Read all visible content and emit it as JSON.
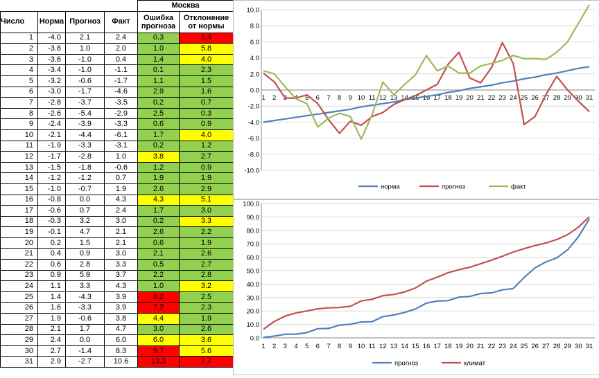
{
  "table": {
    "city": "Москва",
    "headers": {
      "day": "Число",
      "norm": "Норма",
      "forecast": "Прогноз",
      "fact": "Факт",
      "error": "Ошибка прогноза",
      "deviation": "Отклонение от нормы"
    },
    "colors": {
      "green": "#92d050",
      "yellow": "#ffff00",
      "red": "#ff0000"
    },
    "rows": [
      {
        "d": "1",
        "n": "-4.0",
        "p": "2.1",
        "f": "2.4",
        "e": "0.3",
        "ec": "green",
        "o": "6.4",
        "oc": "red"
      },
      {
        "d": "2",
        "n": "-3.8",
        "p": "1.0",
        "f": "2.0",
        "e": "1.0",
        "ec": "green",
        "o": "5.8",
        "oc": "yellow"
      },
      {
        "d": "3",
        "n": "-3.6",
        "p": "-1.0",
        "f": "0.4",
        "e": "1.4",
        "ec": "green",
        "o": "4.0",
        "oc": "yellow"
      },
      {
        "d": "4",
        "n": "-3.4",
        "p": "-1.0",
        "f": "-1.1",
        "e": "0.1",
        "ec": "green",
        "o": "2.3",
        "oc": "green"
      },
      {
        "d": "5",
        "n": "-3.2",
        "p": "-0.6",
        "f": "-1.7",
        "e": "1.1",
        "ec": "green",
        "o": "1.5",
        "oc": "green"
      },
      {
        "d": "6",
        "n": "-3.0",
        "p": "-1.7",
        "f": "-4.6",
        "e": "2.9",
        "ec": "green",
        "o": "1.6",
        "oc": "green"
      },
      {
        "d": "7",
        "n": "-2.8",
        "p": "-3.7",
        "f": "-3.5",
        "e": "0.2",
        "ec": "green",
        "o": "0.7",
        "oc": "green"
      },
      {
        "d": "8",
        "n": "-2.6",
        "p": "-5.4",
        "f": "-2.9",
        "e": "2.5",
        "ec": "green",
        "o": "0.3",
        "oc": "green"
      },
      {
        "d": "9",
        "n": "-2.4",
        "p": "-3.9",
        "f": "-3.3",
        "e": "0.6",
        "ec": "green",
        "o": "0.9",
        "oc": "green"
      },
      {
        "d": "10",
        "n": "-2.1",
        "p": "-4.4",
        "f": "-6.1",
        "e": "1.7",
        "ec": "green",
        "o": "4.0",
        "oc": "yellow"
      },
      {
        "d": "11",
        "n": "-1.9",
        "p": "-3.3",
        "f": "-3.1",
        "e": "0.2",
        "ec": "green",
        "o": "1.2",
        "oc": "green"
      },
      {
        "d": "12",
        "n": "-1.7",
        "p": "-2.8",
        "f": "1.0",
        "e": "3.8",
        "ec": "yellow",
        "o": "2.7",
        "oc": "green"
      },
      {
        "d": "13",
        "n": "-1.5",
        "p": "-1.8",
        "f": "-0.6",
        "e": "1.2",
        "ec": "green",
        "o": "0.9",
        "oc": "green"
      },
      {
        "d": "14",
        "n": "-1.2",
        "p": "-1.2",
        "f": "0.7",
        "e": "1.9",
        "ec": "green",
        "o": "1.9",
        "oc": "green"
      },
      {
        "d": "15",
        "n": "-1.0",
        "p": "-0.7",
        "f": "1.9",
        "e": "2.6",
        "ec": "green",
        "o": "2.9",
        "oc": "green"
      },
      {
        "d": "16",
        "n": "-0.8",
        "p": "0.0",
        "f": "4.3",
        "e": "4.3",
        "ec": "yellow",
        "o": "5.1",
        "oc": "yellow"
      },
      {
        "d": "17",
        "n": "-0.6",
        "p": "0.7",
        "f": "2.4",
        "e": "1.7",
        "ec": "green",
        "o": "3.0",
        "oc": "green"
      },
      {
        "d": "18",
        "n": "-0.3",
        "p": "3.2",
        "f": "3.0",
        "e": "0.2",
        "ec": "green",
        "o": "3.3",
        "oc": "yellow"
      },
      {
        "d": "19",
        "n": "-0.1",
        "p": "4.7",
        "f": "2.1",
        "e": "2.6",
        "ec": "green",
        "o": "2.2",
        "oc": "green"
      },
      {
        "d": "20",
        "n": "0.2",
        "p": "1.5",
        "f": "2.1",
        "e": "0.6",
        "ec": "green",
        "o": "1.9",
        "oc": "green"
      },
      {
        "d": "21",
        "n": "0.4",
        "p": "0.9",
        "f": "3.0",
        "e": "2.1",
        "ec": "green",
        "o": "2.6",
        "oc": "green"
      },
      {
        "d": "22",
        "n": "0.6",
        "p": "2.8",
        "f": "3.3",
        "e": "0.5",
        "ec": "green",
        "o": "2.7",
        "oc": "green"
      },
      {
        "d": "23",
        "n": "0.9",
        "p": "5.9",
        "f": "3.7",
        "e": "2.2",
        "ec": "green",
        "o": "2.8",
        "oc": "green"
      },
      {
        "d": "24",
        "n": "1.1",
        "p": "3.3",
        "f": "4.3",
        "e": "1.0",
        "ec": "green",
        "o": "3.2",
        "oc": "yellow"
      },
      {
        "d": "25",
        "n": "1.4",
        "p": "-4.3",
        "f": "3.9",
        "e": "8.2",
        "ec": "red",
        "o": "2.5",
        "oc": "green"
      },
      {
        "d": "26",
        "n": "1.6",
        "p": "-3.3",
        "f": "3.9",
        "e": "7.2",
        "ec": "red",
        "o": "2.3",
        "oc": "green"
      },
      {
        "d": "27",
        "n": "1.9",
        "p": "-0.6",
        "f": "3.8",
        "e": "4.4",
        "ec": "yellow",
        "o": "1.9",
        "oc": "green"
      },
      {
        "d": "28",
        "n": "2.1",
        "p": "1.7",
        "f": "4.7",
        "e": "3.0",
        "ec": "green",
        "o": "2.6",
        "oc": "green"
      },
      {
        "d": "29",
        "n": "2.4",
        "p": "0.0",
        "f": "6.0",
        "e": "6.0",
        "ec": "yellow",
        "o": "3.6",
        "oc": "yellow"
      },
      {
        "d": "30",
        "n": "2.7",
        "p": "-1.4",
        "f": "8.3",
        "e": "9.7",
        "ec": "red",
        "o": "5.6",
        "oc": "yellow"
      },
      {
        "d": "31",
        "n": "2.9",
        "p": "-2.7",
        "f": "10.6",
        "e": "13.3",
        "ec": "red",
        "o": "7.7",
        "oc": "red"
      }
    ]
  },
  "chart_data": [
    {
      "type": "line",
      "x": [
        1,
        2,
        3,
        4,
        5,
        6,
        7,
        8,
        9,
        10,
        11,
        12,
        13,
        14,
        15,
        16,
        17,
        18,
        19,
        20,
        21,
        22,
        23,
        24,
        25,
        26,
        27,
        28,
        29,
        30,
        31
      ],
      "ylim": [
        -10,
        10
      ],
      "yticks": [
        "10.0",
        "8.0",
        "6.0",
        "4.0",
        "2.0",
        "0.0",
        "-2.0",
        "-4.0",
        "-6.0",
        "-8.0",
        "-10.0"
      ],
      "grid": true,
      "legend_position": "bottom",
      "series": [
        {
          "name": "норма",
          "color": "#4f81bd",
          "values": [
            -4.0,
            -3.8,
            -3.6,
            -3.4,
            -3.2,
            -3.0,
            -2.8,
            -2.6,
            -2.4,
            -2.1,
            -1.9,
            -1.7,
            -1.5,
            -1.2,
            -1.0,
            -0.8,
            -0.6,
            -0.3,
            -0.1,
            0.2,
            0.4,
            0.6,
            0.9,
            1.1,
            1.4,
            1.6,
            1.9,
            2.1,
            2.4,
            2.7,
            2.9
          ]
        },
        {
          "name": "прогноз",
          "color": "#c0504d",
          "values": [
            2.1,
            1.0,
            -1.0,
            -1.0,
            -0.6,
            -1.7,
            -3.7,
            -5.4,
            -3.9,
            -4.4,
            -3.3,
            -2.8,
            -1.8,
            -1.2,
            -0.7,
            0.0,
            0.7,
            3.2,
            4.7,
            1.5,
            0.9,
            2.8,
            5.9,
            3.3,
            -4.3,
            -3.3,
            -0.6,
            1.7,
            0.0,
            -1.4,
            -2.7
          ]
        },
        {
          "name": "факт",
          "color": "#9bbb59",
          "values": [
            2.4,
            2.0,
            0.4,
            -1.1,
            -1.7,
            -4.6,
            -3.5,
            -2.9,
            -3.3,
            -6.1,
            -3.1,
            1.0,
            -0.6,
            0.7,
            1.9,
            4.3,
            2.4,
            3.0,
            2.1,
            2.1,
            3.0,
            3.3,
            3.7,
            4.3,
            3.9,
            3.9,
            3.8,
            4.7,
            6.0,
            8.3,
            10.6
          ]
        }
      ]
    },
    {
      "type": "line",
      "x": [
        1,
        2,
        3,
        4,
        5,
        6,
        7,
        8,
        9,
        10,
        11,
        12,
        13,
        14,
        15,
        16,
        17,
        18,
        19,
        20,
        21,
        22,
        23,
        24,
        25,
        26,
        27,
        28,
        29,
        30,
        31
      ],
      "ylim": [
        0,
        100
      ],
      "yticks": [
        "100.0",
        "90.0",
        "80.0",
        "70.0",
        "60.0",
        "50.0",
        "40.0",
        "30.0",
        "20.0",
        "10.0",
        "0.0"
      ],
      "grid": true,
      "legend_position": "bottom",
      "series": [
        {
          "name": "прогноз",
          "color": "#4f81bd",
          "values": [
            0.3,
            1.3,
            2.7,
            2.8,
            3.9,
            6.8,
            7.0,
            9.5,
            10.1,
            11.8,
            12.0,
            15.8,
            17.0,
            18.9,
            21.5,
            25.8,
            27.5,
            27.7,
            30.3,
            30.9,
            33.0,
            33.5,
            35.7,
            36.7,
            44.9,
            52.1,
            56.5,
            59.5,
            65.5,
            75.2,
            88.5
          ]
        },
        {
          "name": "климат",
          "color": "#c0504d",
          "values": [
            6.4,
            12.2,
            16.2,
            18.5,
            20.0,
            21.6,
            22.3,
            22.6,
            23.5,
            27.5,
            28.7,
            31.4,
            32.3,
            34.2,
            37.1,
            42.2,
            45.2,
            48.5,
            50.7,
            52.6,
            55.2,
            57.9,
            60.7,
            63.9,
            66.4,
            68.7,
            70.6,
            73.2,
            76.8,
            82.4,
            90.1
          ]
        }
      ]
    }
  ]
}
